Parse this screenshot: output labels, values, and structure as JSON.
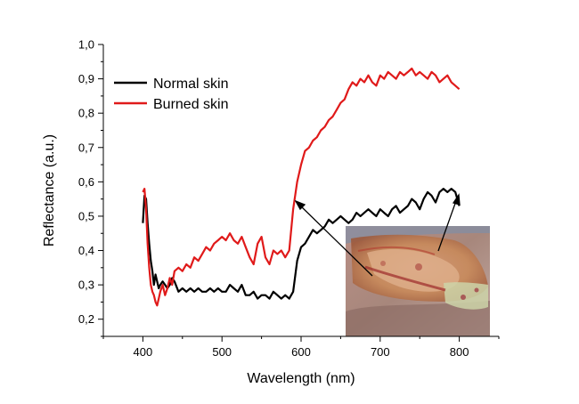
{
  "chart_data": {
    "type": "line",
    "xlabel": "Wavelength (nm)",
    "ylabel": "Reflectance (a.u.)",
    "xlim": [
      350,
      850
    ],
    "ylim": [
      0.15,
      1.0
    ],
    "x_ticks": [
      400,
      500,
      600,
      700,
      800
    ],
    "x_tick_labels": [
      "400",
      "500",
      "600",
      "700",
      "800"
    ],
    "y_ticks": [
      0.2,
      0.3,
      0.4,
      0.5,
      0.6,
      0.7,
      0.8,
      0.9,
      1.0
    ],
    "y_tick_labels": [
      "0,2",
      "0,3",
      "0,4",
      "0,5",
      "0,6",
      "0,7",
      "0,8",
      "0,9",
      "1,0"
    ],
    "grid": false,
    "legend_position": "top-left",
    "inset": "photograph of burned skin with two arrows pointing to the burned and normal regions",
    "series": [
      {
        "name": "Normal skin",
        "color": "#000000",
        "x": [
          400,
          402,
          404,
          406,
          408,
          410,
          412,
          414,
          416,
          418,
          420,
          422,
          425,
          428,
          431,
          434,
          437,
          440,
          445,
          450,
          455,
          460,
          465,
          470,
          475,
          480,
          485,
          490,
          495,
          500,
          505,
          510,
          515,
          520,
          525,
          530,
          535,
          540,
          545,
          550,
          555,
          560,
          565,
          570,
          575,
          580,
          585,
          590,
          595,
          600,
          605,
          610,
          615,
          620,
          625,
          630,
          635,
          640,
          645,
          650,
          655,
          660,
          665,
          670,
          675,
          680,
          685,
          690,
          695,
          700,
          705,
          710,
          715,
          720,
          725,
          730,
          735,
          740,
          745,
          750,
          755,
          760,
          765,
          770,
          775,
          780,
          785,
          790,
          795,
          800
        ],
        "values": [
          0.48,
          0.56,
          0.55,
          0.48,
          0.42,
          0.37,
          0.34,
          0.3,
          0.33,
          0.31,
          0.29,
          0.3,
          0.31,
          0.3,
          0.29,
          0.3,
          0.32,
          0.31,
          0.28,
          0.29,
          0.28,
          0.29,
          0.28,
          0.29,
          0.28,
          0.28,
          0.29,
          0.28,
          0.29,
          0.28,
          0.28,
          0.3,
          0.29,
          0.28,
          0.3,
          0.27,
          0.27,
          0.28,
          0.26,
          0.27,
          0.27,
          0.26,
          0.28,
          0.27,
          0.26,
          0.27,
          0.26,
          0.28,
          0.37,
          0.41,
          0.42,
          0.44,
          0.46,
          0.45,
          0.46,
          0.47,
          0.49,
          0.48,
          0.49,
          0.5,
          0.49,
          0.48,
          0.49,
          0.51,
          0.5,
          0.51,
          0.52,
          0.51,
          0.5,
          0.52,
          0.51,
          0.5,
          0.52,
          0.53,
          0.51,
          0.52,
          0.53,
          0.55,
          0.54,
          0.52,
          0.55,
          0.57,
          0.56,
          0.54,
          0.57,
          0.58,
          0.57,
          0.58,
          0.57,
          0.53
        ]
      },
      {
        "name": "Burned skin",
        "color": "#e01a1a",
        "x": [
          400,
          402,
          404,
          406,
          408,
          410,
          412,
          414,
          416,
          418,
          420,
          422,
          425,
          428,
          431,
          434,
          437,
          440,
          445,
          450,
          455,
          460,
          465,
          470,
          475,
          480,
          485,
          490,
          495,
          500,
          505,
          510,
          515,
          520,
          525,
          530,
          535,
          540,
          545,
          550,
          555,
          560,
          565,
          570,
          575,
          580,
          585,
          590,
          595,
          600,
          605,
          610,
          615,
          620,
          625,
          630,
          635,
          640,
          645,
          650,
          655,
          660,
          665,
          670,
          675,
          680,
          685,
          690,
          695,
          700,
          705,
          710,
          715,
          720,
          725,
          730,
          735,
          740,
          745,
          750,
          755,
          760,
          765,
          770,
          775,
          780,
          785,
          790,
          795,
          800
        ],
        "values": [
          0.57,
          0.58,
          0.52,
          0.42,
          0.35,
          0.3,
          0.28,
          0.27,
          0.25,
          0.24,
          0.26,
          0.28,
          0.3,
          0.27,
          0.29,
          0.32,
          0.3,
          0.34,
          0.35,
          0.34,
          0.36,
          0.35,
          0.38,
          0.37,
          0.39,
          0.41,
          0.4,
          0.42,
          0.43,
          0.44,
          0.43,
          0.45,
          0.43,
          0.42,
          0.44,
          0.41,
          0.38,
          0.36,
          0.42,
          0.44,
          0.38,
          0.36,
          0.4,
          0.39,
          0.4,
          0.38,
          0.4,
          0.52,
          0.6,
          0.65,
          0.69,
          0.7,
          0.72,
          0.73,
          0.75,
          0.76,
          0.78,
          0.79,
          0.81,
          0.83,
          0.84,
          0.87,
          0.89,
          0.88,
          0.9,
          0.89,
          0.91,
          0.89,
          0.88,
          0.91,
          0.9,
          0.92,
          0.91,
          0.9,
          0.92,
          0.91,
          0.92,
          0.93,
          0.91,
          0.92,
          0.91,
          0.9,
          0.92,
          0.91,
          0.89,
          0.9,
          0.91,
          0.89,
          0.88,
          0.87
        ]
      }
    ]
  }
}
